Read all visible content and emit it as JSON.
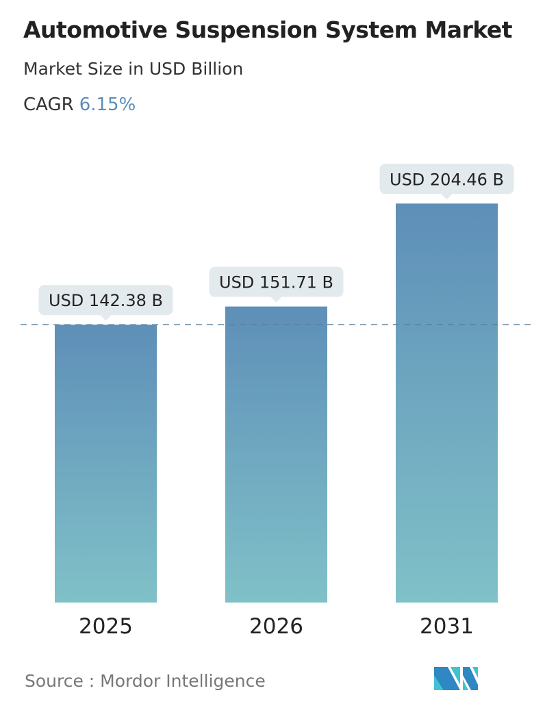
{
  "header": {
    "title": "Automotive Suspension System Market",
    "subtitle": "Market Size in USD Billion",
    "cagr_label": "CAGR",
    "cagr_value": "6.15%"
  },
  "chart_data": {
    "type": "bar",
    "categories": [
      "2025",
      "2026",
      "2031"
    ],
    "values": [
      142.38,
      151.71,
      204.46
    ],
    "data_labels": [
      "USD 142.38 B",
      "USD 151.71 B",
      "USD 204.46 B"
    ],
    "unit": "USD Billion",
    "reference_line": {
      "value": 142.38,
      "style": "dashed"
    },
    "grid": false,
    "colors": {
      "bar_top": "#5e8fb8",
      "bar_bottom": "#80c1c8",
      "label_bg": "#e3eaee",
      "ref_line": "#5e7f99"
    }
  },
  "footer": {
    "source": "Source :  Mordor Intelligence",
    "logo_text": "Mordor Intelligence"
  }
}
